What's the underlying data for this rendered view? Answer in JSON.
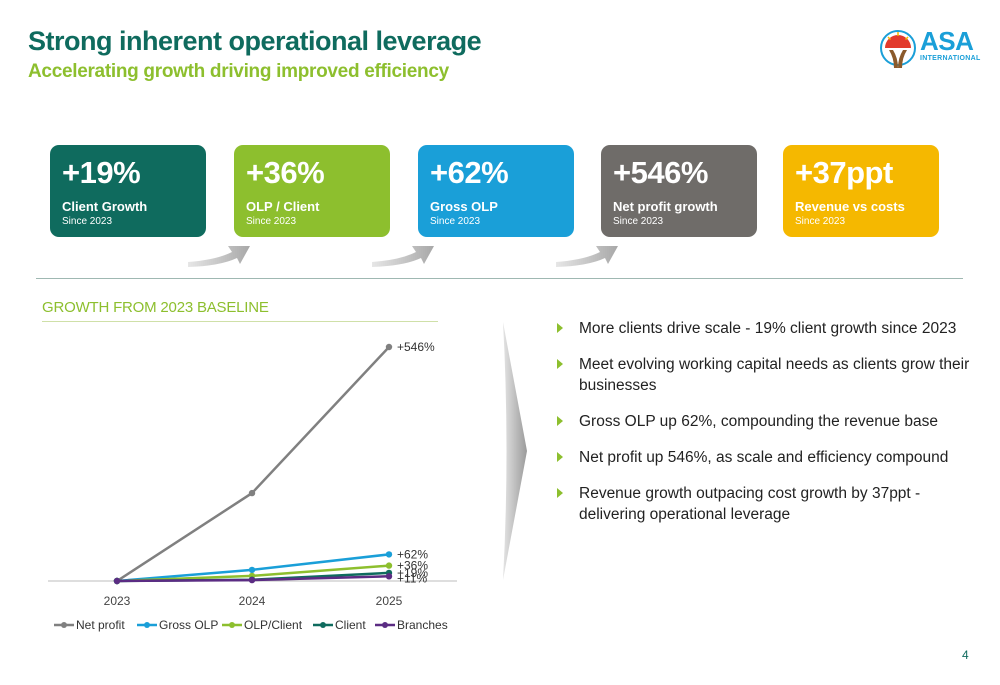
{
  "header": {
    "title": "Strong inherent operational leverage",
    "subtitle": "Accelerating growth driving improved efficiency"
  },
  "logo": {
    "name": "ASA",
    "sub": "INTERNATIONAL",
    "icon": "asa-sun-logo"
  },
  "cards": [
    {
      "value": "+19%",
      "label": "Client Growth",
      "since": "Since 2023",
      "color": "#0f6b5e"
    },
    {
      "value": "+36%",
      "label": "OLP / Client",
      "since": "Since 2023",
      "color": "#8dbf2e"
    },
    {
      "value": "+62%",
      "label": "Gross OLP",
      "since": "Since 2023",
      "color": "#1a9fd8"
    },
    {
      "value": "+546%",
      "label": "Net profit growth",
      "since": "Since 2023",
      "color": "#6f6c69"
    },
    {
      "value": "+37ppt",
      "label": "Revenue vs costs",
      "since": "Since 2023",
      "color": "#f5b800"
    }
  ],
  "chart_section": {
    "title": "GROWTH FROM 2023 BASELINE"
  },
  "chart_data": {
    "type": "line",
    "title": "GROWTH FROM 2023 BASELINE",
    "x": [
      "2023",
      "2024",
      "2025"
    ],
    "ylim": [
      0,
      546
    ],
    "series": [
      {
        "name": "Net profit",
        "values": [
          0,
          205,
          546
        ],
        "end_label": "+546%",
        "color": "#808080"
      },
      {
        "name": "Gross OLP",
        "values": [
          0,
          26,
          62
        ],
        "end_label": "+62%",
        "color": "#1a9fd8"
      },
      {
        "name": "OLP/Client",
        "values": [
          0,
          12,
          36
        ],
        "end_label": "+36%",
        "color": "#8dbf2e"
      },
      {
        "name": "Client",
        "values": [
          0,
          3,
          19
        ],
        "end_label": "+19%",
        "color": "#0f6b5e"
      },
      {
        "name": "Branches",
        "values": [
          0,
          2,
          11
        ],
        "end_label": "+11%",
        "color": "#5b2c83"
      }
    ],
    "legend_position": "bottom"
  },
  "bullets": [
    "More clients drive scale - 19% client growth since 2023",
    "Meet evolving working capital needs as clients grow their businesses",
    "Gross OLP up 62%, compounding the revenue base",
    "Net profit up 546%, as scale and efficiency compound",
    "Revenue growth outpacing cost growth by 37ppt - delivering operational leverage"
  ],
  "page_number": "4"
}
